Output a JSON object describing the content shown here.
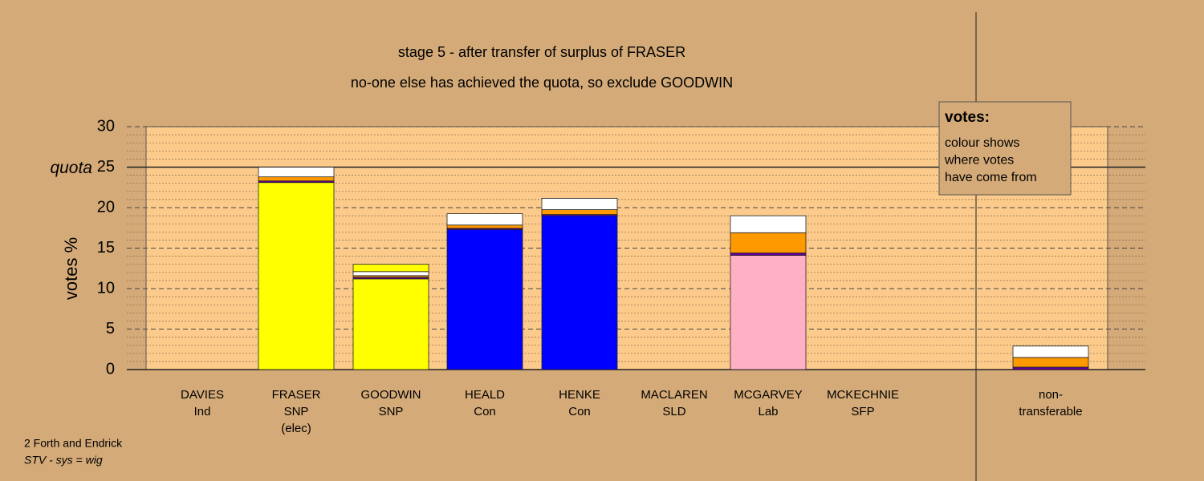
{
  "chart_data": {
    "type": "stacked-bar",
    "title": "stage 5 - after transfer of surplus of FRASER",
    "subtitle": "no-one else has achieved the quota, so exclude GOODWIN",
    "y_label": "votes %",
    "categories": [
      [
        "DAVIES",
        "Ind"
      ],
      [
        "FRASER",
        "SNP",
        "(elec)"
      ],
      [
        "GOODWIN",
        "SNP"
      ],
      [
        "HEALD",
        "Con"
      ],
      [
        "HENKE",
        "Con"
      ],
      [
        "MACLAREN",
        "SLD"
      ],
      [
        "MCGARVEY",
        "Lab"
      ],
      [
        "MCKECHNIE",
        "SFP"
      ],
      [
        "non-",
        "transferable"
      ]
    ],
    "series": [
      {
        "color": "#ffff00",
        "values": [
          0,
          23.1,
          11.2,
          0,
          0,
          0,
          0,
          0,
          0
        ]
      },
      {
        "color": "#0000ff",
        "values": [
          0,
          0,
          0,
          17.3,
          19.0,
          0,
          0,
          0,
          0
        ]
      },
      {
        "color": "#ffb0c4",
        "values": [
          0,
          0,
          0,
          0,
          0,
          0,
          14.1,
          0,
          0
        ]
      },
      {
        "color": "#660099",
        "values": [
          0,
          0.2,
          0.2,
          0.15,
          0.15,
          0,
          0.3,
          0,
          0.3
        ]
      },
      {
        "color": "#ff9900",
        "values": [
          0,
          0.5,
          0.2,
          0.4,
          0.6,
          0,
          2.5,
          0,
          1.2
        ]
      },
      {
        "color": "#ffffff",
        "values": [
          0,
          1.2,
          0.5,
          1.4,
          1.4,
          0,
          2.1,
          0,
          1.4
        ]
      },
      {
        "color": "#ffff00",
        "values": [
          0,
          0,
          0.9,
          0,
          0,
          0,
          0,
          0,
          0
        ]
      }
    ],
    "ylim": [
      0,
      30
    ],
    "yticks": [
      0,
      5,
      10,
      15,
      20,
      25,
      30
    ],
    "grid": true,
    "quota": {
      "value": 25,
      "label": "quota"
    },
    "legend": {
      "title": "votes:",
      "lines": [
        "colour shows",
        "where votes",
        "have come from"
      ]
    },
    "footer": [
      "2 Forth and Endrick",
      "STV - sys = wig"
    ]
  }
}
